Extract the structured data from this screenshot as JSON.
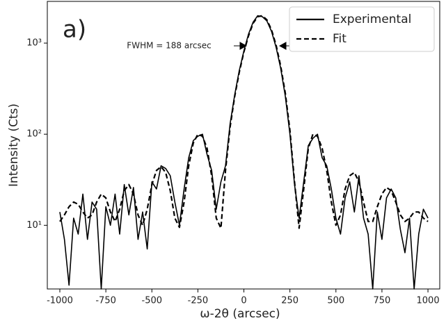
{
  "chart_data": {
    "type": "line",
    "panel_label": "a)",
    "annotation": "FWHM = 188 arcsec",
    "xlabel": "ω-2θ (arcsec)",
    "ylabel": "Intensity (Cts)",
    "x": [
      -1000,
      -975,
      -950,
      -925,
      -900,
      -875,
      -850,
      -825,
      -800,
      -775,
      -750,
      -725,
      -700,
      -675,
      -650,
      -625,
      -600,
      -575,
      -550,
      -525,
      -500,
      -475,
      -450,
      -425,
      -400,
      -375,
      -350,
      -325,
      -300,
      -275,
      -250,
      -225,
      -200,
      -175,
      -150,
      -125,
      -100,
      -75,
      -50,
      -25,
      0,
      25,
      50,
      75,
      100,
      125,
      150,
      175,
      200,
      225,
      250,
      275,
      300,
      325,
      350,
      375,
      400,
      425,
      450,
      475,
      500,
      525,
      550,
      575,
      600,
      625,
      650,
      675,
      700,
      725,
      750,
      775,
      800,
      825,
      850,
      875,
      900,
      925,
      950,
      975,
      1000
    ],
    "series": [
      {
        "name": "Experimental",
        "color": "#000000",
        "style": "solid",
        "values": [
          14,
          7,
          2.2,
          12,
          8,
          22,
          7,
          18,
          15,
          2,
          16,
          10,
          22,
          8,
          28,
          13,
          26,
          7,
          14,
          5.5,
          30,
          25,
          45,
          42,
          35,
          18,
          10,
          25,
          55,
          85,
          95,
          100,
          60,
          40,
          15,
          30,
          45,
          130,
          270,
          500,
          820,
          1250,
          1700,
          2000,
          1950,
          1750,
          1350,
          900,
          530,
          260,
          100,
          28,
          12,
          30,
          75,
          90,
          100,
          55,
          45,
          25,
          12,
          8,
          20,
          30,
          14,
          35,
          12,
          8,
          2,
          14,
          7,
          20,
          25,
          20,
          9,
          5,
          12,
          2,
          8,
          15,
          12
        ]
      },
      {
        "name": "Fit",
        "color": "#000000",
        "style": "dashed",
        "values": [
          11,
          13,
          16,
          18,
          17,
          14,
          12,
          13,
          18,
          22,
          20,
          14,
          11,
          15,
          24,
          28,
          22,
          13,
          10,
          15,
          28,
          40,
          44,
          38,
          24,
          12,
          9.5,
          18,
          45,
          80,
          100,
          95,
          70,
          35,
          12,
          9.3,
          40,
          120,
          260,
          480,
          800,
          1200,
          1650,
          1950,
          2000,
          1800,
          1400,
          950,
          560,
          280,
          110,
          30,
          9.3,
          25,
          70,
          100,
          95,
          70,
          40,
          18,
          10,
          13,
          25,
          35,
          38,
          30,
          18,
          11,
          11,
          16,
          22,
          26,
          24,
          18,
          13,
          11,
          12,
          14,
          14,
          12,
          11
        ]
      }
    ],
    "xlim": [
      -1068,
      1064
    ],
    "ylim": [
      2,
      2870
    ],
    "log_y": true,
    "xticks": [
      -1000,
      -750,
      -500,
      -250,
      0,
      250,
      500,
      750,
      1000
    ],
    "yticks": [
      {
        "value": 10,
        "label": "10¹"
      },
      {
        "value": 100,
        "label": "10²"
      },
      {
        "value": 1000,
        "label": "10³"
      }
    ],
    "legend": "upper right"
  }
}
